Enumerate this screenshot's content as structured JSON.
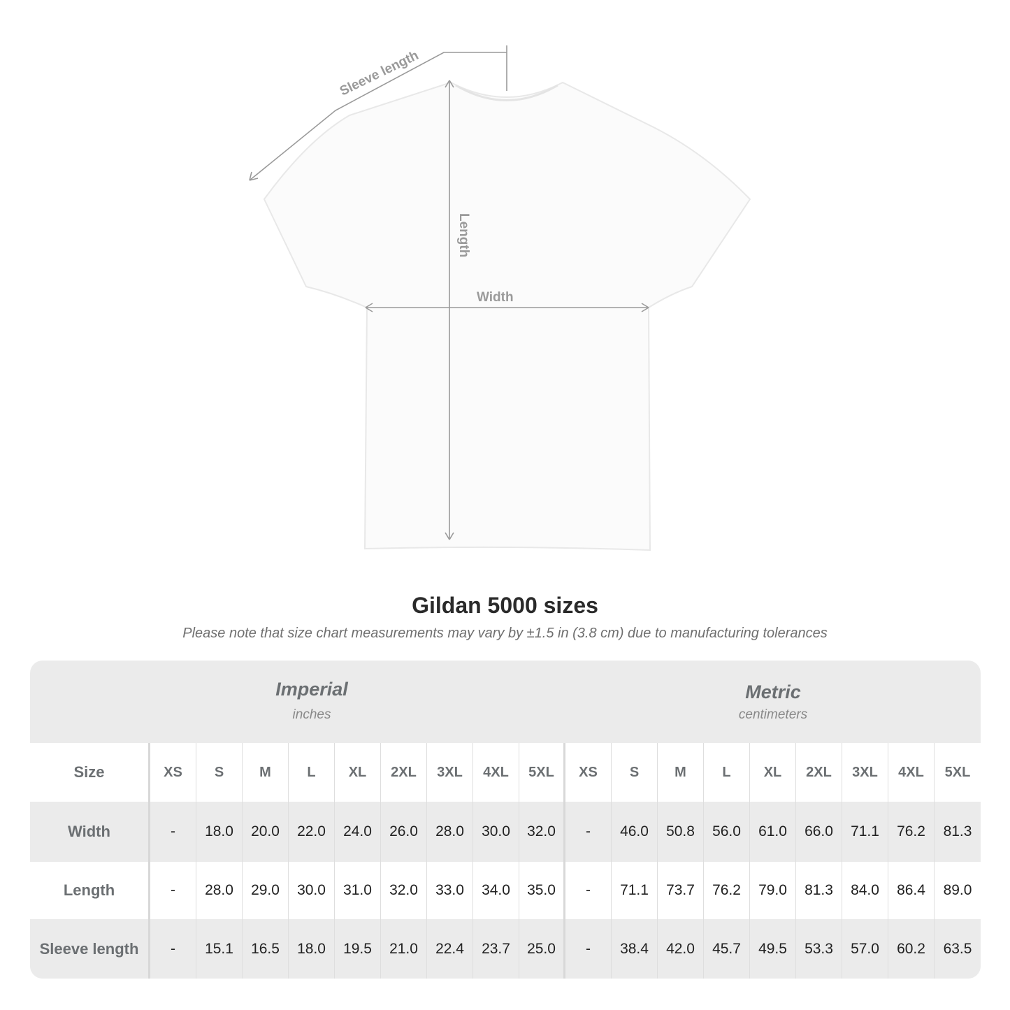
{
  "diagram": {
    "sleeve_label": "Sleeve length",
    "length_label": "Length",
    "width_label": "Width",
    "line_color": "#9a9a9a"
  },
  "title": "Gildan 5000 sizes",
  "note": "Please note that size chart measurements may vary by ±1.5 in (3.8 cm) due to manufacturing tolerances",
  "table": {
    "imperial": {
      "title": "Imperial",
      "unit": "inches"
    },
    "metric": {
      "title": "Metric",
      "unit": "centimeters"
    },
    "size_label": "Size",
    "sizes": [
      "XS",
      "S",
      "M",
      "L",
      "XL",
      "2XL",
      "3XL",
      "4XL",
      "5XL"
    ],
    "rows": [
      {
        "label": "Width",
        "imperial": [
          "-",
          "18.0",
          "20.0",
          "22.0",
          "24.0",
          "26.0",
          "28.0",
          "30.0",
          "32.0"
        ],
        "metric": [
          "-",
          "46.0",
          "50.8",
          "56.0",
          "61.0",
          "66.0",
          "71.1",
          "76.2",
          "81.3"
        ]
      },
      {
        "label": "Length",
        "imperial": [
          "-",
          "28.0",
          "29.0",
          "30.0",
          "31.0",
          "32.0",
          "33.0",
          "34.0",
          "35.0"
        ],
        "metric": [
          "-",
          "71.1",
          "73.7",
          "76.2",
          "79.0",
          "81.3",
          "84.0",
          "86.4",
          "89.0"
        ]
      },
      {
        "label": "Sleeve length",
        "imperial": [
          "-",
          "15.1",
          "16.5",
          "18.0",
          "19.5",
          "21.0",
          "22.4",
          "23.7",
          "25.0"
        ],
        "metric": [
          "-",
          "38.4",
          "42.0",
          "45.7",
          "49.5",
          "53.3",
          "57.0",
          "60.2",
          "63.5"
        ]
      }
    ]
  }
}
